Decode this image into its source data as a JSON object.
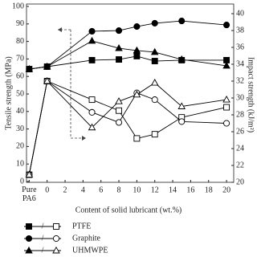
{
  "chart_data": {
    "type": "dual-axis-line",
    "x_label": "Content of solid lubricant (wt.%)",
    "y_label": "Tensile strength (MPa)",
    "y2_label": "Impact strength (kJ/m²)",
    "x": [
      -2,
      0,
      5,
      8,
      10,
      12,
      15,
      20
    ],
    "xlim": [
      -2.3,
      20.8
    ],
    "xticks": [
      {
        "value": -2,
        "label": "Pure PA6"
      },
      0,
      2,
      4,
      6,
      8,
      10,
      12,
      14,
      16,
      18,
      20
    ],
    "ylim": [
      0,
      100
    ],
    "yticks": [
      0,
      10,
      20,
      30,
      40,
      50,
      60,
      70,
      80,
      90,
      100
    ],
    "y2lim": [
      20,
      40
    ],
    "y2ticks": [
      20,
      22,
      24,
      26,
      28,
      30,
      32,
      34,
      36,
      38,
      40
    ],
    "color": "#000000",
    "series": [
      {
        "name": "PTFE",
        "marker": "square",
        "tensile": [
          64.2,
          65.6,
          69.3,
          69.7,
          71.6,
          68.8,
          69.3,
          69.3
        ],
        "impact": [
          20.9,
          32.0,
          29.8,
          28.5,
          25.2,
          25.7,
          27.7,
          28.9
        ]
      },
      {
        "name": "Graphite",
        "marker": "circle",
        "tensile": [
          64.2,
          65.6,
          85.8,
          86.2,
          88.5,
          90.4,
          91.7,
          89.4
        ],
        "impact": [
          20.9,
          32.0,
          28.3,
          27.1,
          30.6,
          29.8,
          27.2,
          27.0
        ]
      },
      {
        "name": "UHMWPE",
        "marker": "triangle",
        "tensile": [
          64.2,
          65.6,
          80.3,
          76.1,
          74.8,
          73.9,
          69.7,
          66.1
        ],
        "impact": [
          20.9,
          32.0,
          26.5,
          29.6,
          30.4,
          31.8,
          29.0,
          29.8
        ]
      }
    ]
  }
}
